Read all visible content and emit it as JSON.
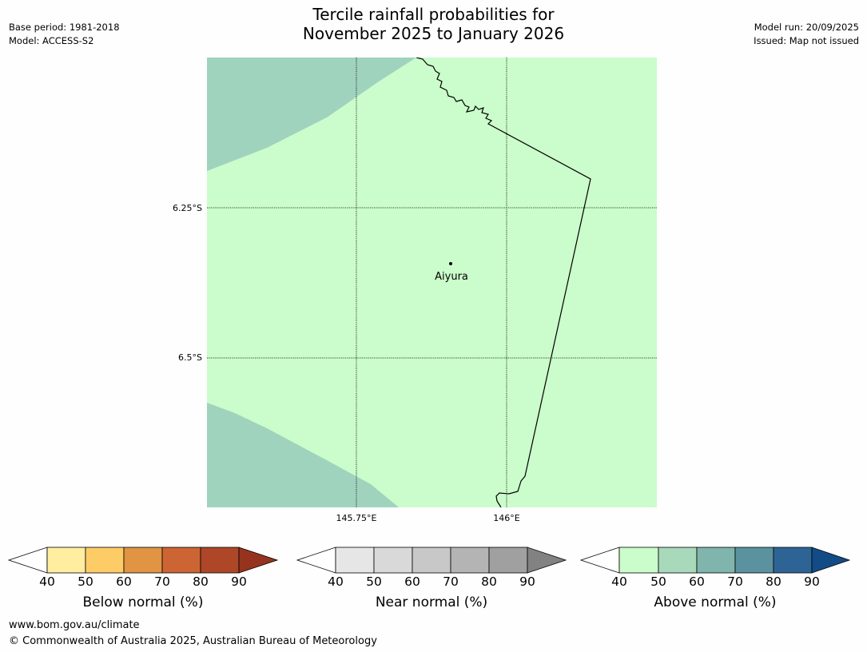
{
  "header": {
    "title_line1": "Tercile rainfall probabilities for",
    "title_line2": "November 2025 to January 2026",
    "base_period": "Base period: 1981-2018",
    "model": "Model: ACCESS-S2",
    "model_run": "Model run: 20/09/2025",
    "issued": "Issued: Map not issued"
  },
  "map": {
    "place_label": "Aiyura",
    "lat_ticks": [
      "6.25°S",
      "6.5°S"
    ],
    "lon_ticks": [
      "145.75°E",
      "146°E"
    ],
    "colors": {
      "above_50": "#cbfccb",
      "above_60": "#a0d3bd",
      "coastline": "#000000"
    }
  },
  "colorbars": [
    {
      "label": "Below normal (%)",
      "ticks": [
        "40",
        "50",
        "60",
        "70",
        "80",
        "90"
      ],
      "colors": [
        "#ffeda0",
        "#fecc66",
        "#e09444",
        "#cc6533",
        "#ae4628",
        "#96331e"
      ]
    },
    {
      "label": "Near normal (%)",
      "ticks": [
        "40",
        "50",
        "60",
        "70",
        "80",
        "90"
      ],
      "colors": [
        "#e6e6e6",
        "#d9d9d9",
        "#c8c8c8",
        "#b4b4b4",
        "#a0a0a0",
        "#828282"
      ]
    },
    {
      "label": "Above normal (%)",
      "ticks": [
        "40",
        "50",
        "60",
        "70",
        "80",
        "90"
      ],
      "colors": [
        "#cbfccb",
        "#a8d9bb",
        "#80b5ad",
        "#5b92a0",
        "#2e6495",
        "#134b86"
      ]
    }
  ],
  "footer": {
    "url": "www.bom.gov.au/climate",
    "copyright": "© Commonwealth of Australia 2025, Australian Bureau of Meteorology"
  }
}
